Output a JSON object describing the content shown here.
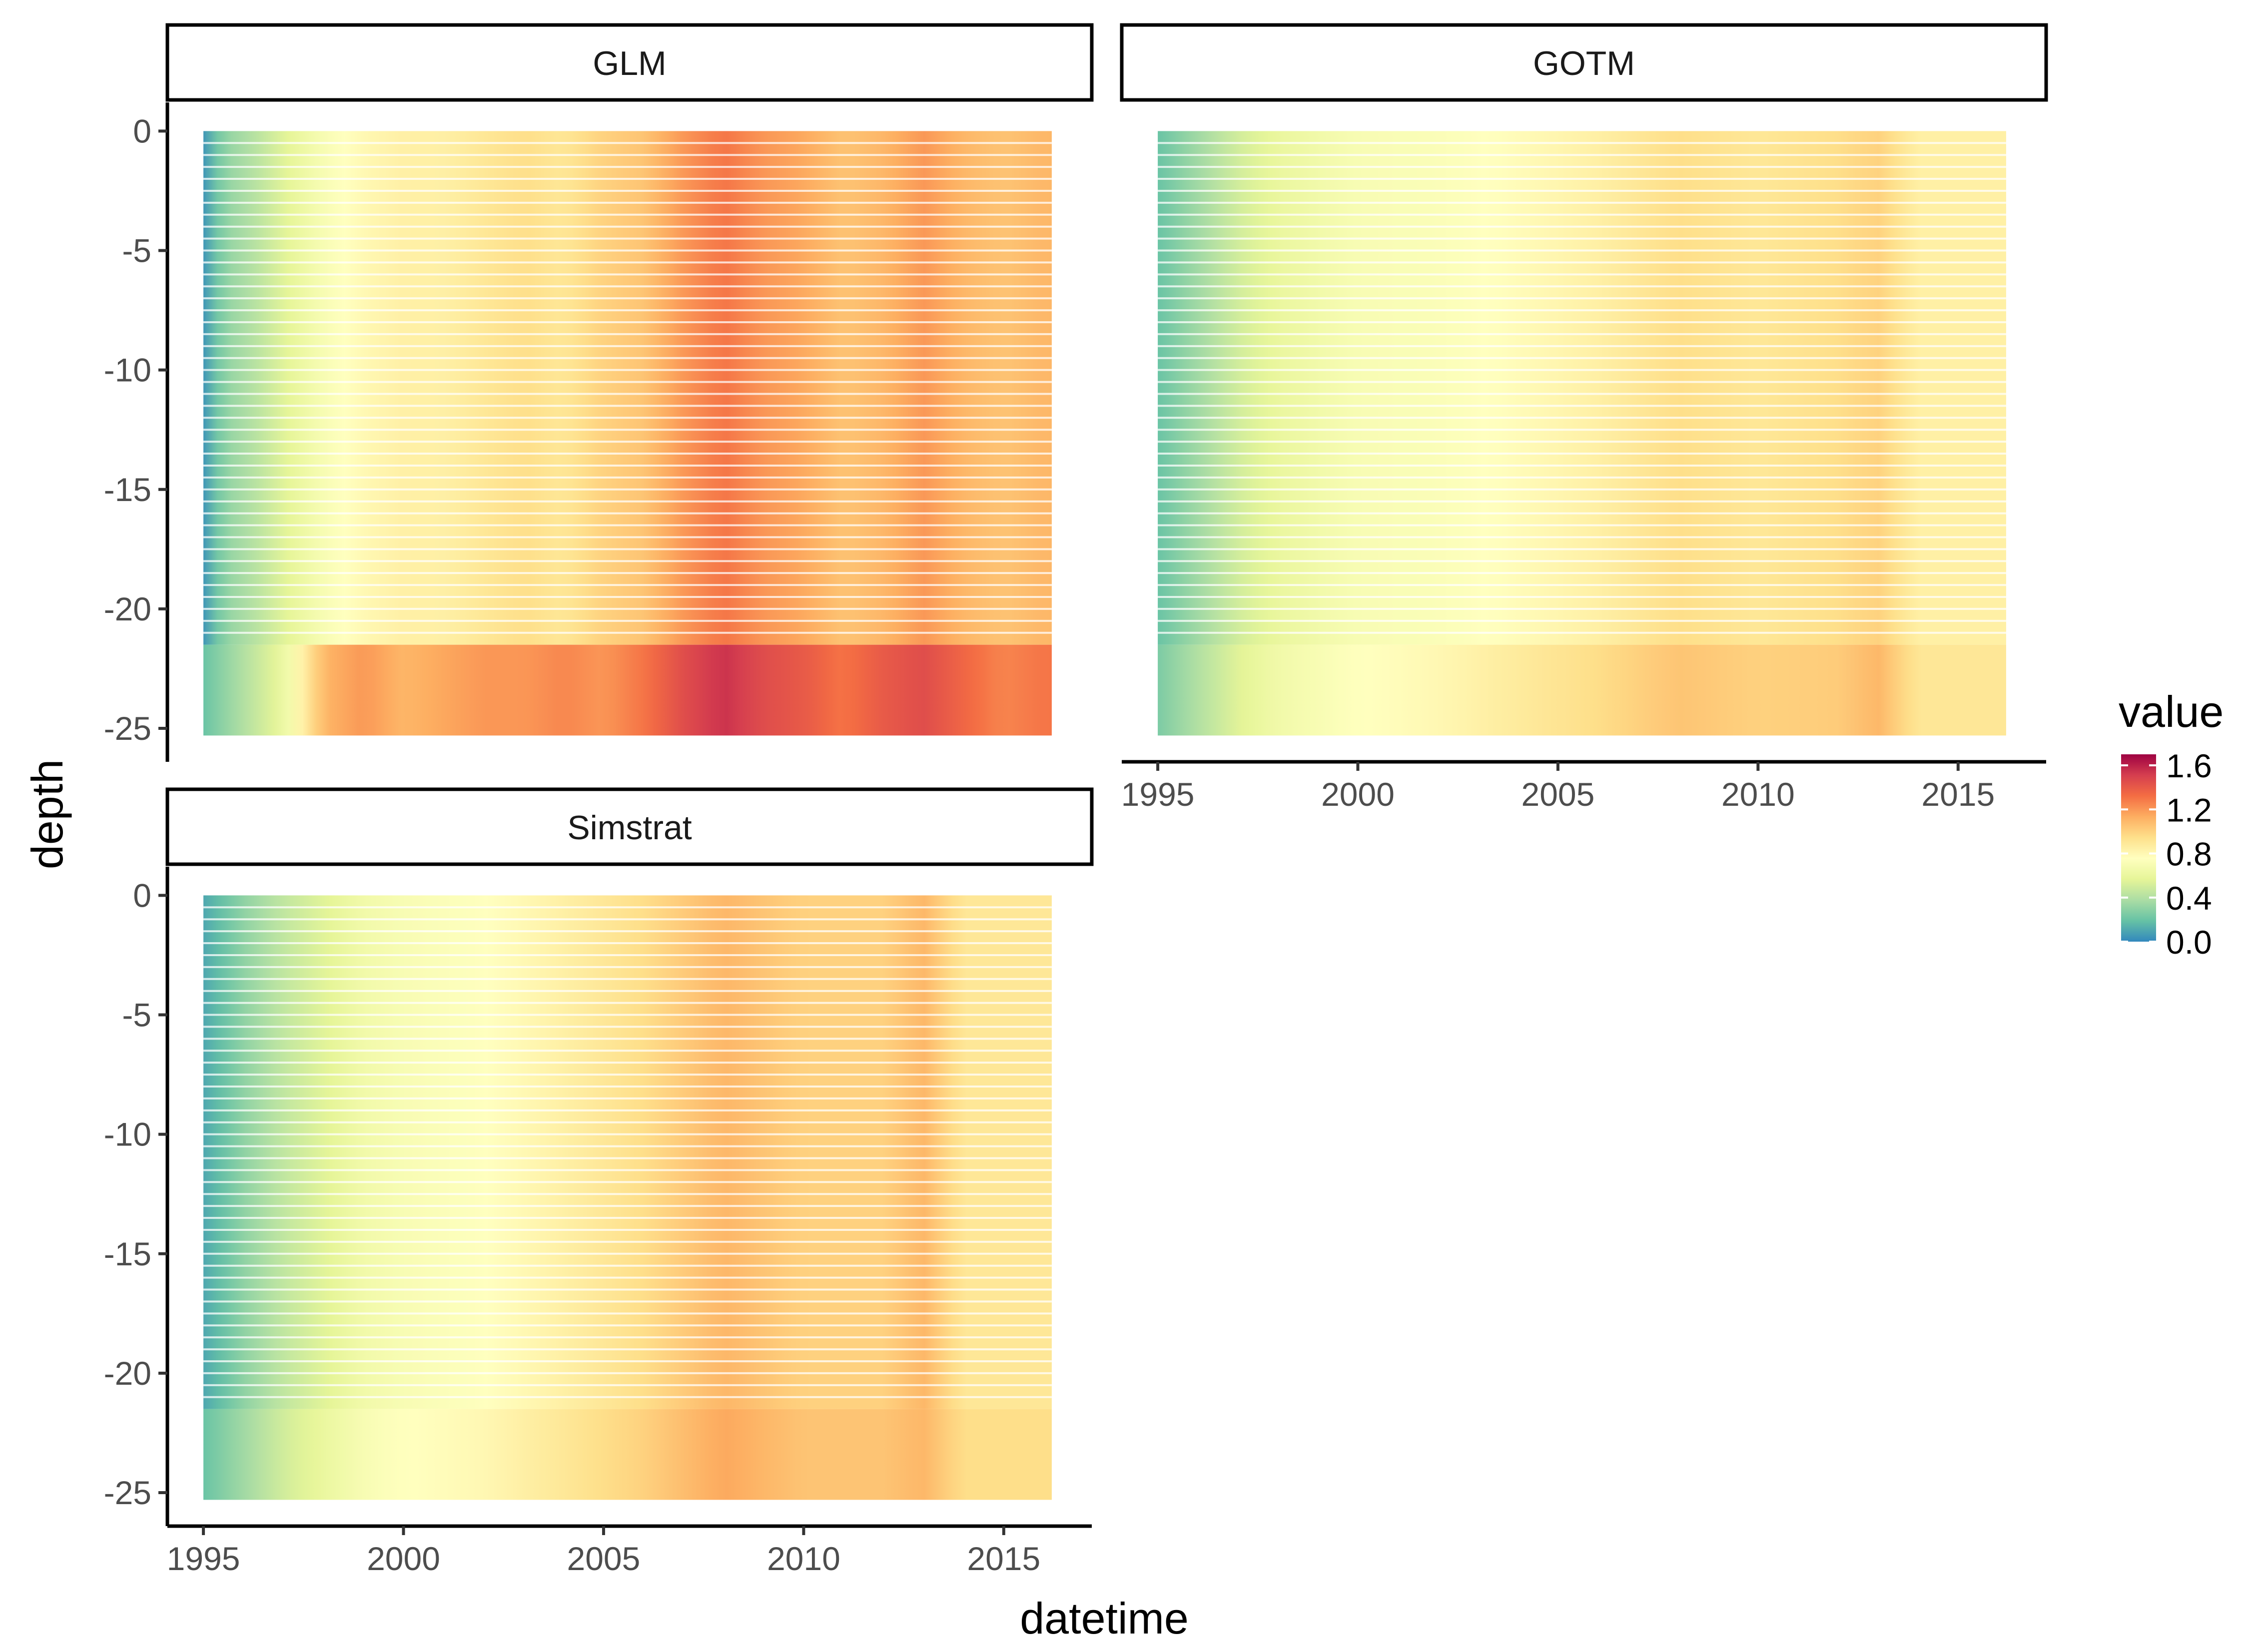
{
  "chart_data": {
    "type": "heatmap",
    "xlabel": "datetime",
    "ylabel": "depth",
    "x_ticks": [
      "1995",
      "2000",
      "2005",
      "2010",
      "2015"
    ],
    "x_tick_values": [
      1995,
      2000,
      2005,
      2010,
      2015
    ],
    "xlim": [
      1994.1,
      2017.2
    ],
    "y_ticks": [
      "0",
      "-5",
      "-10",
      "-15",
      "-20",
      "-25"
    ],
    "y_tick_values": [
      0,
      -5,
      -10,
      -15,
      -20,
      -25
    ],
    "ylim": [
      -26.4,
      1.2
    ],
    "grid": false,
    "legend": {
      "title": "value",
      "position": "right",
      "labels": [
        "1.6",
        "1.2",
        "0.8",
        "0.4",
        "0.0"
      ],
      "label_values": [
        1.6,
        1.2,
        0.8,
        0.4,
        0.0
      ],
      "range": [
        0.0,
        1.7
      ]
    },
    "colormap": "Spectral (reversed)",
    "colors": [
      "#3288bd",
      "#66c2a5",
      "#abdda4",
      "#e6f598",
      "#ffffbf",
      "#fee08b",
      "#fdae61",
      "#f46d43",
      "#d53e4f",
      "#9e0142"
    ],
    "time_range": [
      1995.0,
      2016.2
    ],
    "depth_range": [
      -25.3,
      0
    ],
    "panels": [
      {
        "name": "GLM",
        "surface_series": [
          [
            1995.0,
            0.05
          ],
          [
            1995.5,
            0.3
          ],
          [
            1996.2,
            0.4
          ],
          [
            1997.0,
            0.55
          ],
          [
            1998.0,
            0.7
          ],
          [
            1999.0,
            0.8
          ],
          [
            2000.0,
            0.85
          ],
          [
            2001.0,
            0.85
          ],
          [
            2002.0,
            0.9
          ],
          [
            2003.0,
            0.95
          ],
          [
            2004.0,
            0.9
          ],
          [
            2005.0,
            1.0
          ],
          [
            2006.0,
            1.05
          ],
          [
            2007.0,
            1.2
          ],
          [
            2008.0,
            1.3
          ],
          [
            2009.0,
            1.2
          ],
          [
            2010.0,
            1.15
          ],
          [
            2011.0,
            1.05
          ],
          [
            2012.0,
            1.1
          ],
          [
            2013.0,
            1.2
          ],
          [
            2014.0,
            1.1
          ],
          [
            2015.0,
            1.05
          ],
          [
            2016.0,
            1.1
          ]
        ],
        "bottom_series": [
          [
            1995.0,
            0.2
          ],
          [
            1996.0,
            0.4
          ],
          [
            1997.0,
            0.6
          ],
          [
            1998.0,
            1.1
          ],
          [
            1999.0,
            1.2
          ],
          [
            2000.0,
            1.1
          ],
          [
            2001.0,
            1.15
          ],
          [
            2002.0,
            1.2
          ],
          [
            2003.0,
            1.2
          ],
          [
            2004.0,
            1.25
          ],
          [
            2005.0,
            1.2
          ],
          [
            2006.0,
            1.3
          ],
          [
            2007.0,
            1.45
          ],
          [
            2008.0,
            1.55
          ],
          [
            2009.0,
            1.45
          ],
          [
            2010.0,
            1.4
          ],
          [
            2011.0,
            1.3
          ],
          [
            2012.0,
            1.4
          ],
          [
            2013.0,
            1.45
          ],
          [
            2014.0,
            1.35
          ],
          [
            2015.0,
            1.25
          ],
          [
            2016.0,
            1.3
          ]
        ]
      },
      {
        "name": "GOTM",
        "surface_series": [
          [
            1995.0,
            0.2
          ],
          [
            1996.0,
            0.35
          ],
          [
            1997.0,
            0.5
          ],
          [
            1998.0,
            0.6
          ],
          [
            1999.0,
            0.65
          ],
          [
            2000.0,
            0.7
          ],
          [
            2002.0,
            0.72
          ],
          [
            2004.0,
            0.78
          ],
          [
            2006.0,
            0.85
          ],
          [
            2008.0,
            0.95
          ],
          [
            2010.0,
            0.9
          ],
          [
            2012.0,
            0.95
          ],
          [
            2013.0,
            1.0
          ],
          [
            2014.0,
            0.85
          ],
          [
            2016.0,
            0.85
          ]
        ],
        "bottom_series": [
          [
            1995.0,
            0.25
          ],
          [
            1996.0,
            0.4
          ],
          [
            1997.0,
            0.55
          ],
          [
            1998.0,
            0.65
          ],
          [
            1999.0,
            0.7
          ],
          [
            2000.0,
            0.75
          ],
          [
            2002.0,
            0.8
          ],
          [
            2004.0,
            0.88
          ],
          [
            2006.0,
            0.95
          ],
          [
            2008.0,
            1.05
          ],
          [
            2010.0,
            1.0
          ],
          [
            2012.0,
            1.02
          ],
          [
            2013.0,
            1.1
          ],
          [
            2014.0,
            0.9
          ],
          [
            2016.0,
            0.9
          ]
        ]
      },
      {
        "name": "Simstrat",
        "surface_series": [
          [
            1995.0,
            0.1
          ],
          [
            1996.0,
            0.3
          ],
          [
            1997.0,
            0.45
          ],
          [
            1998.0,
            0.55
          ],
          [
            1999.0,
            0.65
          ],
          [
            2000.0,
            0.7
          ],
          [
            2002.0,
            0.75
          ],
          [
            2004.0,
            0.85
          ],
          [
            2006.0,
            0.95
          ],
          [
            2008.0,
            1.1
          ],
          [
            2010.0,
            1.0
          ],
          [
            2012.0,
            1.0
          ],
          [
            2013.0,
            1.1
          ],
          [
            2014.0,
            0.9
          ],
          [
            2016.0,
            0.9
          ]
        ],
        "bottom_series": [
          [
            1995.0,
            0.2
          ],
          [
            1996.0,
            0.35
          ],
          [
            1997.0,
            0.5
          ],
          [
            1998.0,
            0.6
          ],
          [
            1999.0,
            0.7
          ],
          [
            2000.0,
            0.75
          ],
          [
            2002.0,
            0.8
          ],
          [
            2004.0,
            0.9
          ],
          [
            2006.0,
            1.0
          ],
          [
            2008.0,
            1.15
          ],
          [
            2010.0,
            1.05
          ],
          [
            2012.0,
            1.05
          ],
          [
            2013.0,
            1.1
          ],
          [
            2014.0,
            0.95
          ],
          [
            2016.0,
            0.95
          ]
        ]
      }
    ]
  }
}
